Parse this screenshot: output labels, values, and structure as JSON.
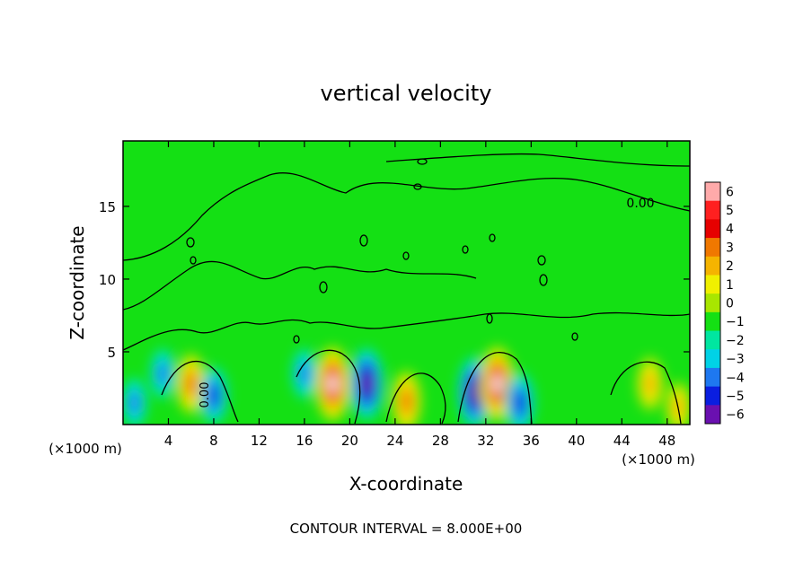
{
  "chart_data": {
    "type": "heatmap",
    "title": "vertical velocity",
    "xlabel": "X-coordinate",
    "ylabel": "Z-coordinate",
    "x_unit_left": "(×1000 m)",
    "x_unit_right": "(×1000 m)",
    "xlim": [
      0,
      50
    ],
    "ylim": [
      0,
      19.5
    ],
    "x_ticks": [
      4,
      8,
      12,
      16,
      20,
      24,
      28,
      32,
      36,
      40,
      44,
      48
    ],
    "y_ticks": [
      5,
      10,
      15
    ],
    "contour_labels": [
      "0.00",
      "0.00"
    ],
    "footer": "CONTOUR INTERVAL = 8.000E+00",
    "colorbar": {
      "min": -6,
      "max": 6,
      "tick_values": [
        6,
        5,
        4,
        3,
        2,
        1,
        0,
        -1,
        -2,
        -3,
        -4,
        -5,
        -6
      ],
      "tick_labels": [
        "6",
        "5",
        "4",
        "3",
        "2",
        "1",
        "0",
        "−1",
        "−2",
        "−3",
        "−4",
        "−5",
        "−6"
      ]
    },
    "cells": [
      {
        "x": 6,
        "z": 2.8,
        "w": 4.0
      },
      {
        "x": 8,
        "z": 2.0,
        "w": -3.5
      },
      {
        "x": 18.5,
        "z": 2.8,
        "w": 6.0
      },
      {
        "x": 21.5,
        "z": 2.8,
        "w": -5.5
      },
      {
        "x": 25,
        "z": 1.6,
        "w": 4.0
      },
      {
        "x": 31,
        "z": 2.2,
        "w": -5.5
      },
      {
        "x": 33,
        "z": 2.8,
        "w": 6.0
      },
      {
        "x": 35,
        "z": 1.5,
        "w": -4.0
      },
      {
        "x": 46.5,
        "z": 2.8,
        "w": 3.0
      },
      {
        "x": 49,
        "z": 1.2,
        "w": 2.5
      },
      {
        "x": 3.5,
        "z": 3.5,
        "w": -2.5
      },
      {
        "x": 16,
        "z": 3.5,
        "w": -2.5
      },
      {
        "x": 1,
        "z": 1.5,
        "w": -2.5
      }
    ],
    "grid": false
  },
  "colors": {
    "background": "#14e014",
    "frame": "#000000",
    "contour": "#000000"
  }
}
